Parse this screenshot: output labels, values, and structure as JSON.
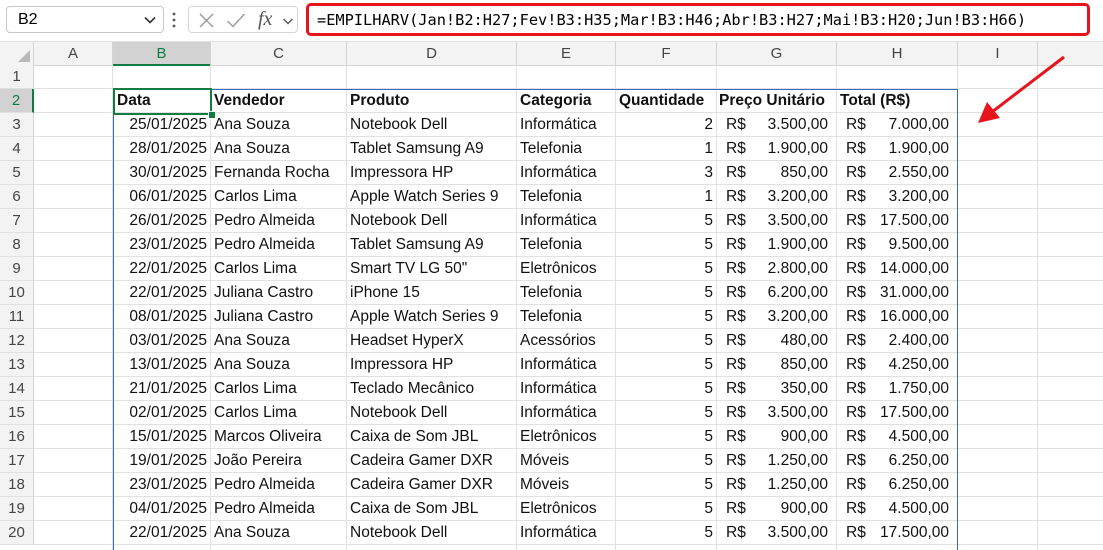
{
  "formula_bar": {
    "name_box": "B2",
    "formula": "=EMPILHARV(Jan!B2:H27;Fev!B3:H35;Mar!B3:H46;Abr!B3:H27;Mai!B3:H20;Jun!B3:H66)",
    "fx_label": "fx",
    "cancel_icon": "close-icon",
    "enter_icon": "checkmark-icon",
    "highlight_color": "#e8141c"
  },
  "columns": [
    "A",
    "B",
    "C",
    "D",
    "E",
    "F",
    "G",
    "H",
    "I"
  ],
  "selected_column": "B",
  "selected_row": 2,
  "rows": [
    "1",
    "2",
    "3",
    "4",
    "5",
    "6",
    "7",
    "8",
    "9",
    "10",
    "11",
    "12",
    "13",
    "14",
    "15",
    "16",
    "17",
    "18",
    "19",
    "20"
  ],
  "headers": {
    "data": "Data",
    "vendedor": "Vendedor",
    "produto": "Produto",
    "categoria": "Categoria",
    "quantidade": "Quantidade",
    "preco": "Preço Unitário",
    "total": "Total (R$)"
  },
  "currency": "R$",
  "records": [
    {
      "data": "25/01/2025",
      "vendedor": "Ana Souza",
      "produto": "Notebook Dell",
      "categoria": "Informática",
      "quantidade": "2",
      "preco": "3.500,00",
      "total": "7.000,00"
    },
    {
      "data": "28/01/2025",
      "vendedor": "Ana Souza",
      "produto": "Tablet Samsung A9",
      "categoria": "Telefonia",
      "quantidade": "1",
      "preco": "1.900,00",
      "total": "1.900,00"
    },
    {
      "data": "30/01/2025",
      "vendedor": "Fernanda Rocha",
      "produto": "Impressora HP",
      "categoria": "Informática",
      "quantidade": "3",
      "preco": "850,00",
      "total": "2.550,00"
    },
    {
      "data": "06/01/2025",
      "vendedor": "Carlos Lima",
      "produto": "Apple Watch Series 9",
      "categoria": "Telefonia",
      "quantidade": "1",
      "preco": "3.200,00",
      "total": "3.200,00"
    },
    {
      "data": "26/01/2025",
      "vendedor": "Pedro Almeida",
      "produto": "Notebook Dell",
      "categoria": "Informática",
      "quantidade": "5",
      "preco": "3.500,00",
      "total": "17.500,00"
    },
    {
      "data": "23/01/2025",
      "vendedor": "Pedro Almeida",
      "produto": "Tablet Samsung A9",
      "categoria": "Telefonia",
      "quantidade": "5",
      "preco": "1.900,00",
      "total": "9.500,00"
    },
    {
      "data": "22/01/2025",
      "vendedor": "Carlos Lima",
      "produto": "Smart TV LG 50\"",
      "categoria": "Eletrônicos",
      "quantidade": "5",
      "preco": "2.800,00",
      "total": "14.000,00"
    },
    {
      "data": "22/01/2025",
      "vendedor": "Juliana Castro",
      "produto": "iPhone 15",
      "categoria": "Telefonia",
      "quantidade": "5",
      "preco": "6.200,00",
      "total": "31.000,00"
    },
    {
      "data": "08/01/2025",
      "vendedor": "Juliana Castro",
      "produto": "Apple Watch Series 9",
      "categoria": "Telefonia",
      "quantidade": "5",
      "preco": "3.200,00",
      "total": "16.000,00"
    },
    {
      "data": "03/01/2025",
      "vendedor": "Ana Souza",
      "produto": "Headset HyperX",
      "categoria": "Acessórios",
      "quantidade": "5",
      "preco": "480,00",
      "total": "2.400,00"
    },
    {
      "data": "13/01/2025",
      "vendedor": "Ana Souza",
      "produto": "Impressora HP",
      "categoria": "Informática",
      "quantidade": "5",
      "preco": "850,00",
      "total": "4.250,00"
    },
    {
      "data": "21/01/2025",
      "vendedor": "Carlos Lima",
      "produto": "Teclado Mecânico",
      "categoria": "Informática",
      "quantidade": "5",
      "preco": "350,00",
      "total": "1.750,00"
    },
    {
      "data": "02/01/2025",
      "vendedor": "Carlos Lima",
      "produto": "Notebook Dell",
      "categoria": "Informática",
      "quantidade": "5",
      "preco": "3.500,00",
      "total": "17.500,00"
    },
    {
      "data": "15/01/2025",
      "vendedor": "Marcos Oliveira",
      "produto": "Caixa de Som JBL",
      "categoria": "Eletrônicos",
      "quantidade": "5",
      "preco": "900,00",
      "total": "4.500,00"
    },
    {
      "data": "19/01/2025",
      "vendedor": "João Pereira",
      "produto": "Cadeira Gamer DXR",
      "categoria": "Móveis",
      "quantidade": "5",
      "preco": "1.250,00",
      "total": "6.250,00"
    },
    {
      "data": "23/01/2025",
      "vendedor": "Pedro Almeida",
      "produto": "Cadeira Gamer DXR",
      "categoria": "Móveis",
      "quantidade": "5",
      "preco": "1.250,00",
      "total": "6.250,00"
    },
    {
      "data": "04/01/2025",
      "vendedor": "Pedro Almeida",
      "produto": "Caixa de Som JBL",
      "categoria": "Eletrônicos",
      "quantidade": "5",
      "preco": "900,00",
      "total": "4.500,00"
    },
    {
      "data": "22/01/2025",
      "vendedor": "Ana Souza",
      "produto": "Notebook Dell",
      "categoria": "Informática",
      "quantidade": "5",
      "preco": "3.500,00",
      "total": "17.500,00"
    }
  ],
  "colors": {
    "selection_green": "#107c41",
    "range_blue": "#2f6ebf",
    "annotation_red": "#e8141c"
  }
}
